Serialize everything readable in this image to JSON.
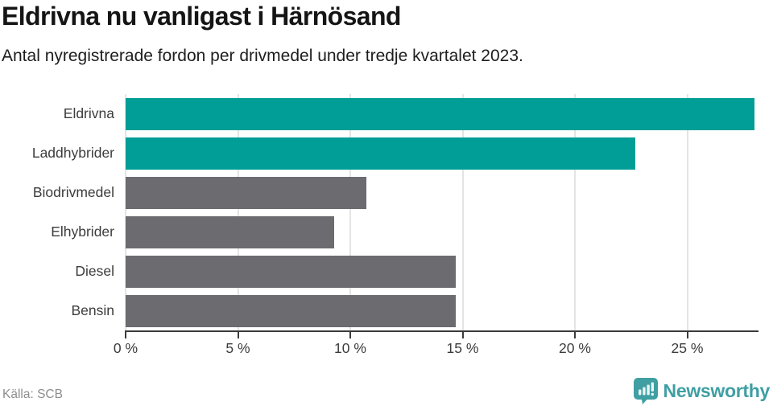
{
  "header": {
    "title": "Eldrivna nu vanligast i Härnösand",
    "subtitle": "Antal nyregistrerade fordon per drivmedel under tredje kvartalet 2023."
  },
  "footer": {
    "source": "Källa: SCB",
    "brand": "Newsworthy"
  },
  "colors": {
    "highlight": "#009e96",
    "muted": "#6b6b70",
    "brand": "#3f9fa3",
    "gridline": "#e4e4e4",
    "axis": "#3b3b3b"
  },
  "chart_data": {
    "type": "bar",
    "orientation": "horizontal",
    "title": "Eldrivna nu vanligast i Härnösand",
    "subtitle": "Antal nyregistrerade fordon per drivmedel under tredje kvartalet 2023.",
    "categories": [
      "Eldrivna",
      "Laddhybrider",
      "Biodrivmedel",
      "Elhybrider",
      "Diesel",
      "Bensin"
    ],
    "values": [
      28.0,
      22.7,
      10.7,
      9.3,
      14.7,
      14.7
    ],
    "unit": "%",
    "bar_colors": [
      "#009e96",
      "#009e96",
      "#6b6b70",
      "#6b6b70",
      "#6b6b70",
      "#6b6b70"
    ],
    "xlim": [
      0,
      28.1
    ],
    "xticks": [
      0,
      5,
      10,
      15,
      20,
      25
    ],
    "xtick_labels": [
      "0 %",
      "5 %",
      "10 %",
      "15 %",
      "20 %",
      "25 %"
    ],
    "grid": true,
    "legend": false,
    "value_labels": false
  }
}
